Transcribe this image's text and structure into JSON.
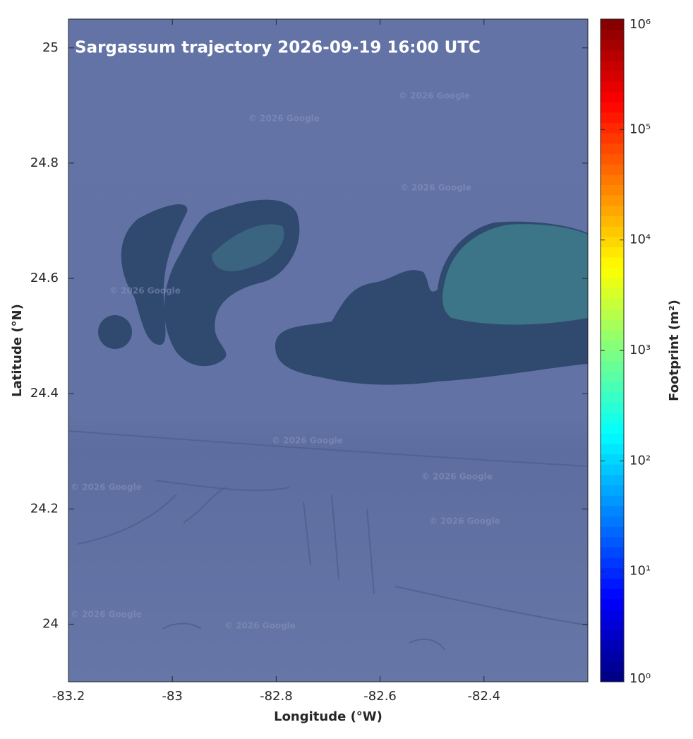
{
  "chart_data": {
    "type": "map",
    "title": "Sargassum trajectory 2026-09-19 16:00 UTC",
    "x_label": "Longitude (°W)",
    "y_label": "Latitude (°N)",
    "xlim": [
      -83.2,
      -82.2
    ],
    "xticks": [
      -83.2,
      -83,
      -82.8,
      -82.6,
      -82.4
    ],
    "ylim": [
      23.9,
      25.05
    ],
    "yticks": [
      24,
      24.2,
      24.4,
      24.6,
      24.8,
      25
    ],
    "colorbar": {
      "label": "Footprint (m²)",
      "colormap": "jet",
      "scale": "log",
      "lim": [
        1,
        1000000
      ],
      "ticks": [
        {
          "value": 1,
          "label": "10⁰"
        },
        {
          "value": 10,
          "label": "10¹"
        },
        {
          "value": 100,
          "label": "10²"
        },
        {
          "value": 1000,
          "label": "10³"
        },
        {
          "value": 10000,
          "label": "10⁴"
        },
        {
          "value": 100000,
          "label": "10⁵"
        },
        {
          "value": 1000000,
          "label": "10⁶"
        }
      ]
    },
    "watermarks": [
      "© 2026 Google",
      "© 2026 Google",
      "© 2026 Google",
      "© 2026 Google",
      "© 2026 Google",
      "© 2026 Google",
      "© 2026 Google",
      "© 2026 Google",
      "© 2026 Google",
      "© 2026 Google"
    ]
  }
}
